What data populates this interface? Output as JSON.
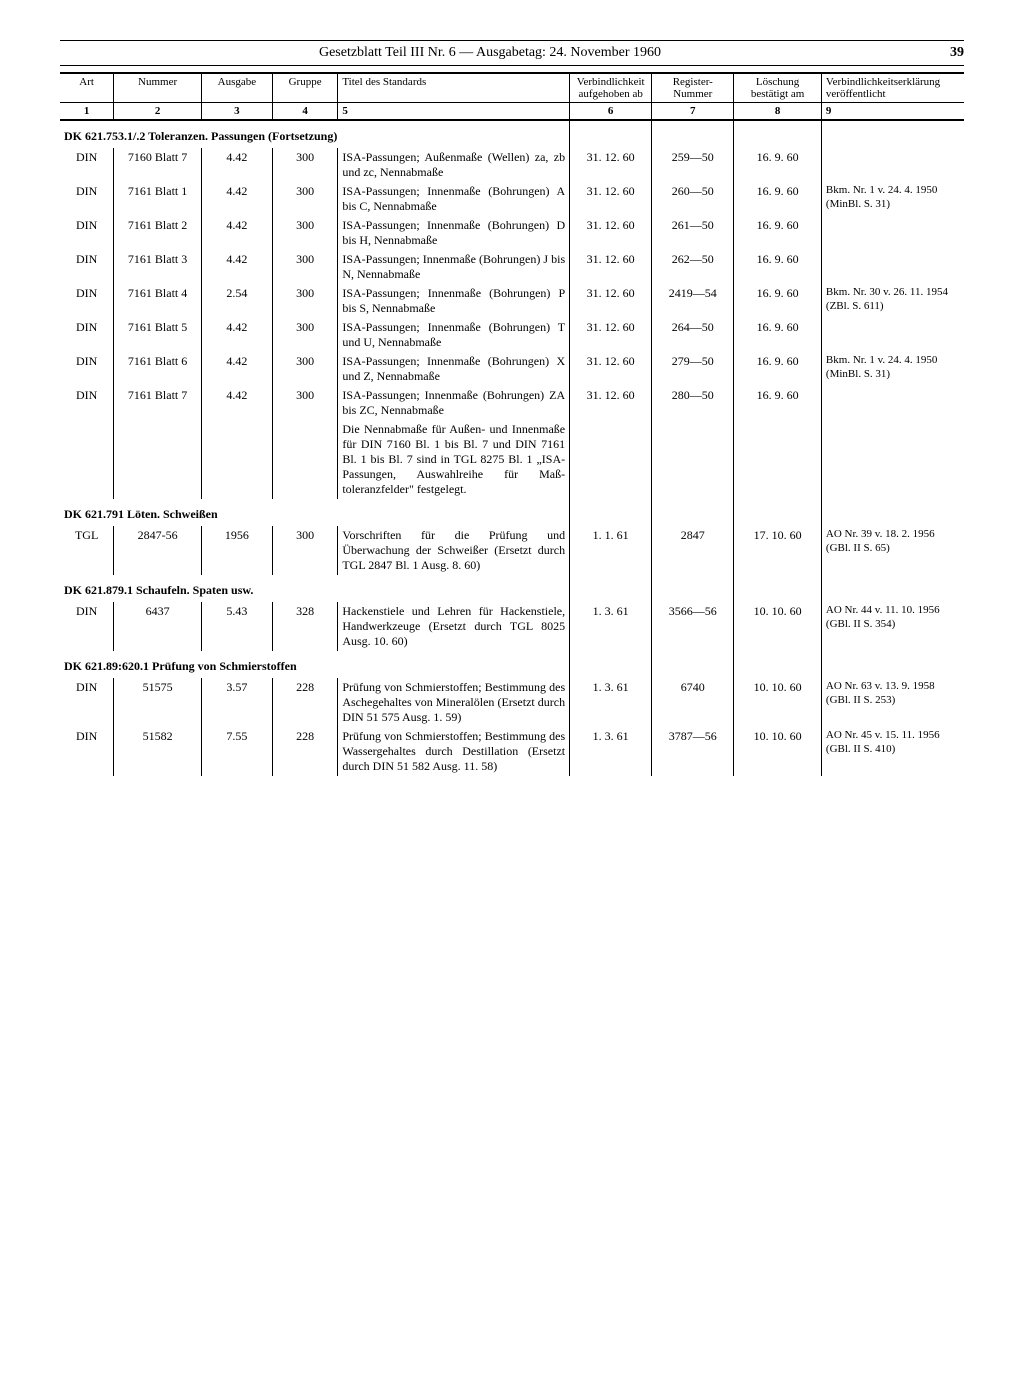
{
  "header": {
    "title": "Gesetzblatt Teil III Nr. 6 — Ausgabetag: 24. November 1960",
    "page": "39"
  },
  "columns": {
    "h1": "Art",
    "h2": "Nummer",
    "h3": "Ausgabe",
    "h4": "Gruppe",
    "h5": "Titel des Standards",
    "h6": "Verbind­lichkeit aufge­hoben ab",
    "h7": "Register-Nummer",
    "h8": "Löschung bestätigt am",
    "h9": "Verbindlichkeits­erklärung veröffentlicht",
    "n1": "1",
    "n2": "2",
    "n3": "3",
    "n4": "4",
    "n5": "5",
    "n6": "6",
    "n7": "7",
    "n8": "8",
    "n9": "9"
  },
  "sections": [
    {
      "title": "DK 621.753.1/.2 Toleranzen. Passungen (Fortsetzung)",
      "rows": [
        {
          "art": "DIN",
          "num": "7160 Blatt 7",
          "aus": "4.42",
          "grp": "300",
          "titel": "ISA-Passungen; Außen­maße (Wellen) za, zb und zc, Nennabmaße",
          "verb": "31. 12. 60",
          "reg": "259—50",
          "loesch": "16. 9. 60",
          "erkl": ""
        },
        {
          "art": "DIN",
          "num": "7161 Blatt 1",
          "aus": "4.42",
          "grp": "300",
          "titel": "ISA-Passungen; Innen­maße (Bohrungen) A bis C, Nennabmaße",
          "verb": "31. 12. 60",
          "reg": "260—50",
          "loesch": "16. 9. 60",
          "erkl": "Bkm. Nr. 1 v. 24. 4. 1950 (MinBl. S. 31)"
        },
        {
          "art": "DIN",
          "num": "7161 Blatt 2",
          "aus": "4.42",
          "grp": "300",
          "titel": "ISA-Passungen; Innen­maße (Bohrungen) D bis H, Nennabmaße",
          "verb": "31. 12. 60",
          "reg": "261—50",
          "loesch": "16. 9. 60",
          "erkl": ""
        },
        {
          "art": "DIN",
          "num": "7161 Blatt 3",
          "aus": "4.42",
          "grp": "300",
          "titel": "ISA-Passungen; Innen­maße (Bohrungen) J bis N, Nennabmaße",
          "verb": "31. 12. 60",
          "reg": "262—50",
          "loesch": "16. 9. 60",
          "erkl": ""
        },
        {
          "art": "DIN",
          "num": "7161 Blatt 4",
          "aus": "2.54",
          "grp": "300",
          "titel": "ISA-Passungen; Innen­maße (Bohrungen) P bis S, Nennabmaße",
          "verb": "31. 12. 60",
          "reg": "2419—54",
          "loesch": "16. 9. 60",
          "erkl": "Bkm. Nr. 30 v. 26. 11. 1954 (ZBl. S. 611)"
        },
        {
          "art": "DIN",
          "num": "7161 Blatt 5",
          "aus": "4.42",
          "grp": "300",
          "titel": "ISA-Passungen; Innen­maße (Bohrungen) T und U, Nennabmaße",
          "verb": "31. 12. 60",
          "reg": "264—50",
          "loesch": "16. 9. 60",
          "erkl": ""
        },
        {
          "art": "DIN",
          "num": "7161 Blatt 6",
          "aus": "4.42",
          "grp": "300",
          "titel": "ISA-Passungen; Innen­maße (Bohrungen) X und Z, Nennabmaße",
          "verb": "31. 12. 60",
          "reg": "279—50",
          "loesch": "16. 9. 60",
          "erkl": "Bkm. Nr. 1 v. 24. 4. 1950 (MinBl. S. 31)"
        },
        {
          "art": "DIN",
          "num": "7161 Blatt 7",
          "aus": "4.42",
          "grp": "300",
          "titel": "ISA-Passungen; Innen­maße (Bohrungen) ZA bis ZC, Nennabmaße",
          "verb": "31. 12. 60",
          "reg": "280—50",
          "loesch": "16. 9. 60",
          "erkl": ""
        },
        {
          "art": "",
          "num": "",
          "aus": "",
          "grp": "",
          "titel": "Die Nennabmaße für Außen- und Innenmaße für DIN 7160 Bl. 1 bis Bl. 7 und DIN 7161 Bl. 1 bis Bl. 7 sind in TGL 8275 Bl. 1 „ISA-Passungen, Auswahlreihe für Maß­toleranzfelder\" festgelegt.",
          "verb": "",
          "reg": "",
          "loesch": "",
          "erkl": ""
        }
      ]
    },
    {
      "title": "DK 621.791 Löten. Schweißen",
      "rows": [
        {
          "art": "TGL",
          "num": "2847-56",
          "aus": "1956",
          "grp": "300",
          "titel": "Vorschriften für die Prü­fung und Überwachung der Schweißer (Ersetzt durch TGL 2847 Bl. 1 Ausg. 8. 60)",
          "verb": "1. 1. 61",
          "reg": "2847",
          "loesch": "17. 10. 60",
          "erkl": "AO Nr. 39 v. 18. 2. 1956 (GBl. II S. 65)"
        }
      ]
    },
    {
      "title": "DK 621.879.1 Schaufeln. Spaten usw.",
      "rows": [
        {
          "art": "DIN",
          "num": "6437",
          "aus": "5.43",
          "grp": "328",
          "titel": "Hackenstiele und Lehren für Hackenstiele, Hand­werkzeuge (Ersetzt durch TGL 8025 Ausg. 10. 60)",
          "verb": "1. 3. 61",
          "reg": "3566—56",
          "loesch": "10. 10. 60",
          "erkl": "AO Nr. 44 v. 11. 10. 1956 (GBl. II S. 354)"
        }
      ]
    },
    {
      "title": "DK 621.89:620.1 Prüfung von Schmierstoffen",
      "rows": [
        {
          "art": "DIN",
          "num": "51575",
          "aus": "3.57",
          "grp": "228",
          "titel": "Prüfung von Schmier­stoffen; Bestimmung des Aschegehaltes von Mine­ralölen (Ersetzt durch DIN 51 575 Ausg. 1. 59)",
          "verb": "1. 3. 61",
          "reg": "6740",
          "loesch": "10. 10. 60",
          "erkl": "AO Nr. 63 v. 13. 9. 1958 (GBl. II S. 253)"
        },
        {
          "art": "DIN",
          "num": "51582",
          "aus": "7.55",
          "grp": "228",
          "titel": "Prüfung von Schmier­stoffen; Bestimmung des Wassergehaltes durch Destillation (Ersetzt durch DIN 51 582 Ausg. 11. 58)",
          "verb": "1. 3. 61",
          "reg": "3787—56",
          "loesch": "10. 10. 60",
          "erkl": "AO Nr. 45 v. 15. 11. 1956 (GBl. II S. 410)"
        }
      ]
    }
  ]
}
